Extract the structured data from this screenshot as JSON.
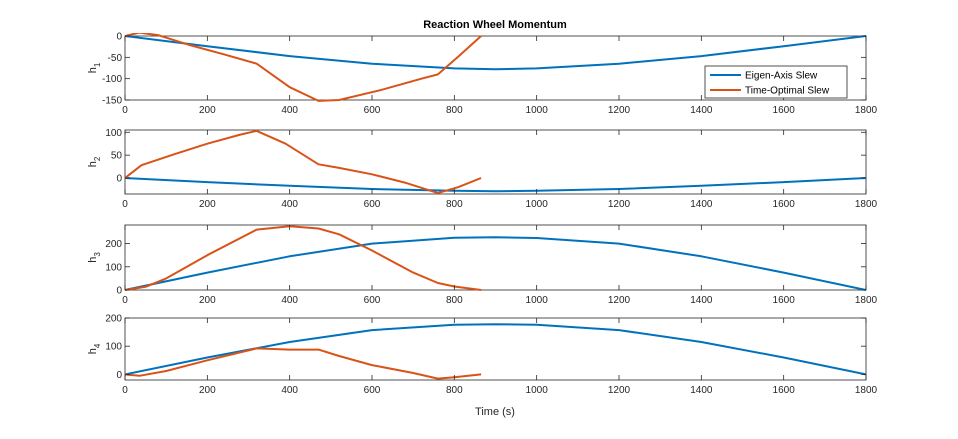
{
  "chart_data": {
    "type": "line",
    "title": "Reaction Wheel Momentum",
    "xlabel": "Time (s)",
    "colors": {
      "eigen": "#0072BD",
      "optimal": "#D95319",
      "axes": "#262626"
    },
    "legend": {
      "location": "right, inside first subplot",
      "entries": [
        {
          "label": "Eigen-Axis Slew",
          "color": "#0072BD"
        },
        {
          "label": "Time-Optimal Slew",
          "color": "#D95319"
        }
      ]
    },
    "subplots": [
      {
        "ylabel_base": "h",
        "ylabel_sub": "1",
        "xlim": [
          0,
          1800
        ],
        "ylim": [
          -150,
          0
        ],
        "xticks": [
          0,
          200,
          400,
          600,
          800,
          1000,
          1200,
          1400,
          1600,
          1800
        ],
        "yticks": [
          -150,
          -100,
          -50,
          0
        ],
        "series": [
          {
            "name": "Eigen-Axis Slew",
            "color": "#0072BD",
            "x": [
              0,
              200,
              400,
              600,
              800,
              900,
              1000,
              1200,
              1400,
              1600,
              1800
            ],
            "y": [
              0,
              -24,
              -47,
              -65,
              -76,
              -78,
              -76,
              -65,
              -47,
              -24,
              0
            ]
          },
          {
            "name": "Time-Optimal Slew",
            "color": "#D95319",
            "x": [
              0,
              35,
              80,
              160,
              240,
              320,
              400,
              470,
              520,
              620,
              720,
              760,
              810,
              865
            ],
            "y": [
              0,
              8,
              2,
              -22,
              -43,
              -65,
              -120,
              -152,
              -150,
              -127,
              -100,
              -90,
              -48,
              0
            ]
          }
        ]
      },
      {
        "ylabel_base": "h",
        "ylabel_sub": "2",
        "xlim": [
          0,
          1800
        ],
        "ylim": [
          -35,
          105
        ],
        "xticks": [
          0,
          200,
          400,
          600,
          800,
          1000,
          1200,
          1400,
          1600,
          1800
        ],
        "yticks": [
          0,
          50,
          100
        ],
        "series": [
          {
            "name": "Eigen-Axis Slew",
            "color": "#0072BD",
            "x": [
              0,
              200,
              400,
              600,
              800,
              900,
              1000,
              1200,
              1400,
              1600,
              1800
            ],
            "y": [
              0,
              -9,
              -17,
              -24,
              -28,
              -29,
              -28,
              -24,
              -17,
              -9,
              0
            ]
          },
          {
            "name": "Time-Optimal Slew",
            "color": "#D95319",
            "x": [
              0,
              40,
              120,
              200,
              280,
              320,
              390,
              470,
              520,
              600,
              680,
              760,
              810,
              865
            ],
            "y": [
              0,
              28,
              52,
              75,
              95,
              103,
              75,
              30,
              22,
              8,
              -10,
              -33,
              -20,
              0
            ]
          }
        ]
      },
      {
        "ylabel_base": "h",
        "ylabel_sub": "3",
        "xlim": [
          0,
          1800
        ],
        "ylim": [
          0,
          280
        ],
        "xticks": [
          0,
          200,
          400,
          600,
          800,
          1000,
          1200,
          1400,
          1600,
          1800
        ],
        "yticks": [
          0,
          100,
          200
        ],
        "series": [
          {
            "name": "Eigen-Axis Slew",
            "color": "#0072BD",
            "x": [
              0,
              200,
              400,
              600,
              800,
              900,
              1000,
              1200,
              1400,
              1600,
              1800
            ],
            "y": [
              0,
              75,
              145,
              200,
              225,
              227,
              224,
              200,
              145,
              75,
              0
            ]
          },
          {
            "name": "Time-Optimal Slew",
            "color": "#D95319",
            "x": [
              0,
              50,
              100,
              200,
              320,
              400,
              470,
              520,
              600,
              700,
              760,
              800,
              865
            ],
            "y": [
              0,
              14,
              50,
              150,
              260,
              275,
              265,
              240,
              170,
              75,
              30,
              15,
              0
            ]
          }
        ]
      },
      {
        "ylabel_base": "h",
        "ylabel_sub": "4",
        "xlim": [
          0,
          1800
        ],
        "ylim": [
          -20,
          200
        ],
        "xticks": [
          0,
          200,
          400,
          600,
          800,
          1000,
          1200,
          1400,
          1600,
          1800
        ],
        "yticks": [
          0,
          100,
          200
        ],
        "series": [
          {
            "name": "Eigen-Axis Slew",
            "color": "#0072BD",
            "x": [
              0,
              200,
              400,
              600,
              800,
              900,
              1000,
              1200,
              1400,
              1600,
              1800
            ],
            "y": [
              0,
              60,
              115,
              157,
              176,
              178,
              176,
              157,
              115,
              60,
              0
            ]
          },
          {
            "name": "Time-Optimal Slew",
            "color": "#D95319",
            "x": [
              0,
              35,
              100,
              200,
              320,
              400,
              470,
              520,
              600,
              700,
              760,
              800,
              865
            ],
            "y": [
              0,
              -5,
              12,
              50,
              92,
              88,
              88,
              65,
              33,
              5,
              -15,
              -10,
              0
            ]
          }
        ]
      }
    ]
  }
}
